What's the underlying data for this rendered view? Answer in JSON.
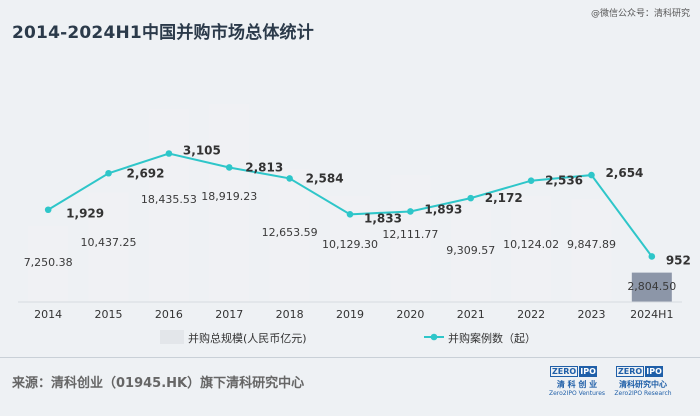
{
  "title": "2014-2024H1中国并购市场总体统计",
  "watermark": "@微信公众号：清科研究",
  "source": "来源：清科创业（01945.HK）旗下清科研究中心",
  "logos": [
    {
      "badge_a": "ZERO",
      "badge_b": "IPO",
      "cn": "清 科 创 业",
      "en": "Zero2IPO Ventures"
    },
    {
      "badge_a": "ZERO",
      "badge_b": "IPO",
      "cn": "清科研究中心",
      "en": "Zero2IPO Research"
    }
  ],
  "colors": {
    "bar": "#f0f1f4",
    "bar_highlight": "#8c96a8",
    "line": "#2ec6c9",
    "text": "#333333"
  },
  "chart_data": {
    "type": "bar+line",
    "categories": [
      "2014",
      "2015",
      "2016",
      "2017",
      "2018",
      "2019",
      "2020",
      "2021",
      "2022",
      "2023",
      "2024H1"
    ],
    "series": [
      {
        "name": "并购总规模(人民币亿元)",
        "type": "bar",
        "values": [
          7250.38,
          10437.25,
          18435.53,
          18919.23,
          12653.59,
          10129.3,
          12111.77,
          9309.57,
          10124.02,
          9847.89,
          2804.5
        ],
        "labels": [
          "7,250.38",
          "10,437.25",
          "18,435.53",
          "18,919.23",
          "12,653.59",
          "10,129.30",
          "12,111.77",
          "9,309.57",
          "10,124.02",
          "9,847.89",
          "2,804.50"
        ]
      },
      {
        "name": "并购案例数（起）",
        "type": "line",
        "values": [
          1929,
          2692,
          3105,
          2813,
          2584,
          1833,
          1893,
          2172,
          2536,
          2654,
          952
        ],
        "labels": [
          "1,929",
          "2,692",
          "3,105",
          "2,813",
          "2,584",
          "1,833",
          "1,893",
          "2,172",
          "2,536",
          "2,654",
          "952"
        ]
      }
    ],
    "bar_ylim": [
      0,
      21000
    ],
    "line_ylim": [
      0,
      4600
    ],
    "legend": [
      "并购总规模(人民币亿元)",
      "并购案例数（起）"
    ],
    "legend_position": "bottom"
  }
}
